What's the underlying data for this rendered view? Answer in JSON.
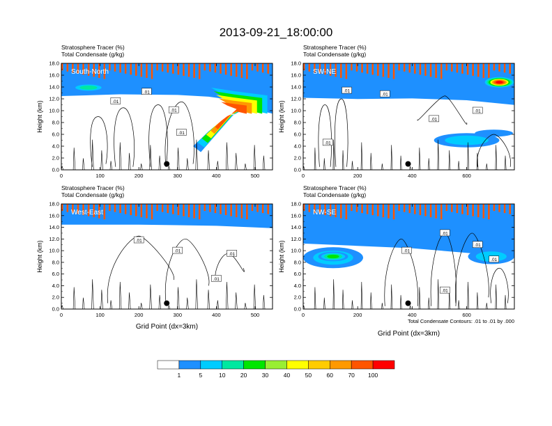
{
  "chart_data": {
    "type": "heatmap",
    "title": "2013-09-21_18:00:00",
    "variables": [
      "Stratosphere Tracer   (%)",
      "Total Condensate   (g/kg)"
    ],
    "panels": [
      {
        "label": "South-North",
        "xlim": [
          0,
          545
        ],
        "xticks": [
          0,
          100,
          200,
          300,
          400,
          500
        ],
        "xlabel": "",
        "contour_labels": [
          ".01",
          ".01",
          ".01",
          ".01"
        ],
        "dot_x": 272,
        "dot_y": 1.0
      },
      {
        "label": "SW-NE",
        "xlim": [
          0,
          775
        ],
        "xticks": [
          0,
          200,
          400,
          600
        ],
        "xlabel": "",
        "contour_labels": [
          ".01",
          ".01",
          ".01",
          ".01",
          ".01"
        ],
        "dot_x": 385,
        "dot_y": 1.0
      },
      {
        "label": "West-East",
        "xlim": [
          0,
          545
        ],
        "xticks": [
          0,
          100,
          200,
          300,
          400,
          500
        ],
        "xlabel": "Grid Point (dx=3km)",
        "contour_labels": [
          ".01",
          ".01",
          ".01",
          ".01"
        ],
        "dot_x": 272,
        "dot_y": 1.0
      },
      {
        "label": "NW-SE",
        "xlim": [
          0,
          775
        ],
        "xticks": [
          0,
          200,
          400,
          600
        ],
        "xlabel": "Grid Point (dx=3km)",
        "contour_labels": [
          ".01",
          ".01",
          ".01",
          ".01",
          ".01"
        ],
        "dot_x": 385,
        "dot_y": 1.0
      }
    ],
    "ylabel": "Height (km)",
    "ylim": [
      0,
      18
    ],
    "yticks": [
      "0.0",
      "2.0",
      "4.0",
      "6.0",
      "8.0",
      "10.0",
      "12.0",
      "14.0",
      "16.0",
      "18.0"
    ],
    "contour_note": "Total Condensate Contours: .01 to .01 by .000",
    "colorbar": {
      "levels": [
        "1",
        "5",
        "10",
        "20",
        "30",
        "40",
        "50",
        "60",
        "70",
        "100"
      ],
      "colors": [
        "#ffffff",
        "#1e90ff",
        "#00ccff",
        "#00e8a0",
        "#00e600",
        "#99ee33",
        "#ffff00",
        "#ffcc00",
        "#ff9900",
        "#ff5500",
        "#ff0000"
      ]
    }
  }
}
